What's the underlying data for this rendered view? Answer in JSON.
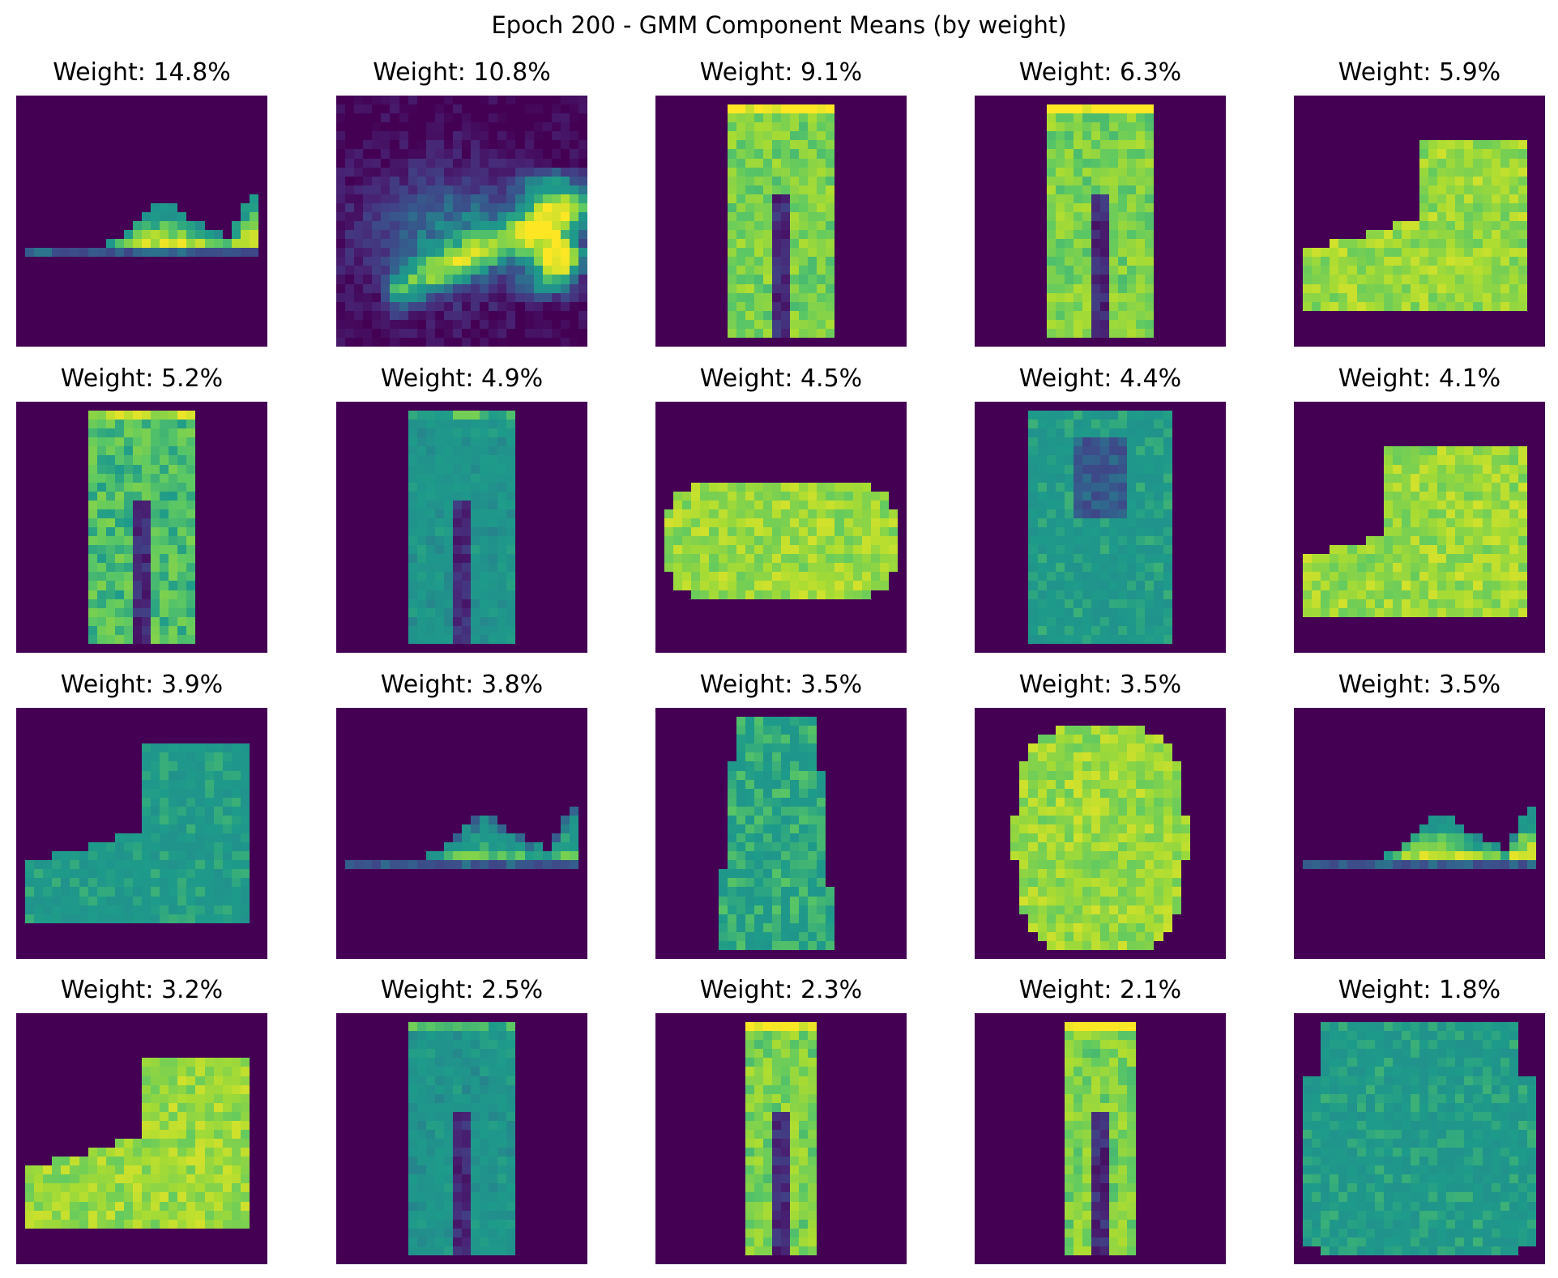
{
  "chart_data": {
    "type": "heatmap",
    "title": "Epoch 200 - GMM Component Means (by weight)",
    "colormap": "viridis",
    "grid": false,
    "axes_visible": false,
    "layout": {
      "rows": 4,
      "cols": 5
    },
    "colors": {
      "background": "#ffffff",
      "low": "#440154",
      "mid": "#21918c",
      "high": "#fde725"
    },
    "panels": [
      {
        "label": "Weight: 14.8%",
        "weight_pct": 14.8,
        "shape": "sneaker"
      },
      {
        "label": "Weight: 10.8%",
        "weight_pct": 10.8,
        "shape": "sandal"
      },
      {
        "label": "Weight: 9.1%",
        "weight_pct": 9.1,
        "shape": "trouser"
      },
      {
        "label": "Weight: 6.3%",
        "weight_pct": 6.3,
        "shape": "trouser"
      },
      {
        "label": "Weight: 5.9%",
        "weight_pct": 5.9,
        "shape": "boot"
      },
      {
        "label": "Weight: 5.2%",
        "weight_pct": 5.2,
        "shape": "trouser-soft"
      },
      {
        "label": "Weight: 4.9%",
        "weight_pct": 4.9,
        "shape": "trouser-dim"
      },
      {
        "label": "Weight: 4.5%",
        "weight_pct": 4.5,
        "shape": "bag"
      },
      {
        "label": "Weight: 4.4%",
        "weight_pct": 4.4,
        "shape": "top"
      },
      {
        "label": "Weight: 4.1%",
        "weight_pct": 4.1,
        "shape": "boot-wide"
      },
      {
        "label": "Weight: 3.9%",
        "weight_pct": 3.9,
        "shape": "boot-dim"
      },
      {
        "label": "Weight: 3.8%",
        "weight_pct": 3.8,
        "shape": "sneaker-dim"
      },
      {
        "label": "Weight: 3.5%",
        "weight_pct": 3.5,
        "shape": "dress"
      },
      {
        "label": "Weight: 3.5%",
        "weight_pct": 3.5,
        "shape": "oval"
      },
      {
        "label": "Weight: 3.5%",
        "weight_pct": 3.5,
        "shape": "sneaker-low"
      },
      {
        "label": "Weight: 3.2%",
        "weight_pct": 3.2,
        "shape": "boot"
      },
      {
        "label": "Weight: 2.5%",
        "weight_pct": 2.5,
        "shape": "trouser-dim"
      },
      {
        "label": "Weight: 2.3%",
        "weight_pct": 2.3,
        "shape": "trouser-narrow"
      },
      {
        "label": "Weight: 2.1%",
        "weight_pct": 2.1,
        "shape": "trouser-narrow"
      },
      {
        "label": "Weight: 1.8%",
        "weight_pct": 1.8,
        "shape": "pullover"
      }
    ]
  }
}
